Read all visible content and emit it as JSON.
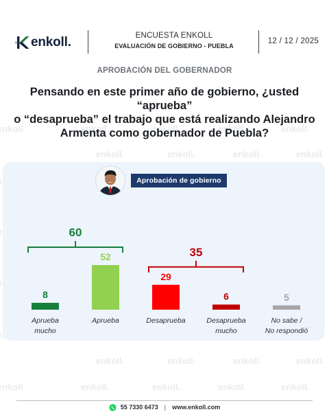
{
  "header": {
    "brand": "enkoll.",
    "title": "ENCUESTA ENKOLL",
    "subtitle": "EVALUACIÓN DE GOBIERNO - PUEBLA",
    "date": "12 / 12 / 2025"
  },
  "section_title": "APROBACIÓN DEL GOBERNADOR",
  "question": {
    "line1": "Pensando en este primer año de gobierno, ¿usted “aprueba”",
    "line2": "o “desaprueba” el trabajo que está realizando Alejandro",
    "line3": "Armenta como gobernador de Puebla?"
  },
  "chart_label": "Aprobación de gobierno",
  "chart_data": {
    "type": "bar",
    "categories": [
      [
        "Aprueba",
        "mucho"
      ],
      [
        "Aprueba"
      ],
      [
        "Desaprueba"
      ],
      [
        "Desaprueba",
        "mucho"
      ],
      [
        "No sabe /",
        "No respondió"
      ]
    ],
    "values": [
      8,
      52,
      29,
      6,
      5
    ],
    "colors": [
      "#15803d",
      "#92d050",
      "#ff0000",
      "#c00000",
      "#a6a6a6"
    ],
    "groups": [
      {
        "total": 60,
        "members": [
          0,
          1
        ],
        "color": "#15803d"
      },
      {
        "total": 35,
        "members": [
          2,
          3
        ],
        "color": "#c00000"
      }
    ]
  },
  "footer": {
    "phone": "55 7330 6473",
    "separator": "|",
    "website": "www.enkoll.com"
  },
  "watermark": "enkoll.",
  "colors": {
    "navy": "#1d3a6b",
    "card_bg": "#eef4fc",
    "whatsapp": "#25d366"
  },
  "icons": {
    "logo": "enkoll-k-logo",
    "contact": "whatsapp-icon",
    "watermark": "enkoll-watermark"
  }
}
